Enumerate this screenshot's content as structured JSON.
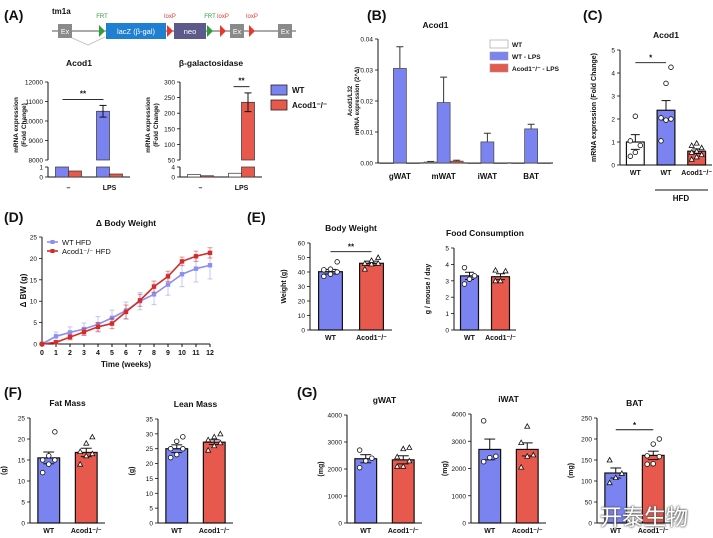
{
  "colors": {
    "wt": "#7b83f0",
    "ko": "#e8594d",
    "white": "#ffffff",
    "frt": "#2e9e3a",
    "loxp": "#e8372c",
    "lacz": "#1f7fd1",
    "neo": "#5b5a8a",
    "exon": "#8a8a8a",
    "wt_line": "#8b8ff2",
    "ko_line": "#d42b2b"
  },
  "panels": {
    "A": {
      "label": "(A)",
      "construct": {
        "name": "tm1a",
        "exon": "Ex",
        "lacz": "lacZ (β-gal)",
        "neo": "neo",
        "frt": "FRT",
        "loxp": "loxP"
      },
      "legend": [
        "WT",
        "Acod1⁻/⁻"
      ]
    },
    "B": {
      "label": "(B)"
    },
    "C": {
      "label": "(C)",
      "group_label": "HFD"
    },
    "D": {
      "label": "(D)"
    },
    "E": {
      "label": "(E)"
    },
    "F": {
      "label": "(F)"
    },
    "G": {
      "label": "(G)"
    }
  },
  "chart_data": [
    {
      "id": "A1",
      "type": "bar",
      "title": "Acod1",
      "ylabel": "mRNA expression (Fold Change)",
      "categories": [
        "–",
        "LPS"
      ],
      "broken_axis": {
        "low": [
          0,
          1
        ],
        "high": [
          8000,
          12000
        ]
      },
      "yticks_low": [
        "0",
        "1"
      ],
      "yticks_high": [
        "8000",
        "9000",
        "10000",
        "11000",
        "12000"
      ],
      "series": [
        {
          "name": "WT",
          "values": [
            1.0,
            10500
          ],
          "errors": [
            0,
            300
          ]
        },
        {
          "name": "Acod1-/-",
          "values": [
            0.6,
            0.3
          ],
          "errors": [
            0.05,
            0.05
          ]
        }
      ],
      "significance": [
        {
          "label": "**",
          "between": [
            "– WT",
            "LPS WT"
          ]
        }
      ]
    },
    {
      "id": "A2",
      "type": "bar",
      "title": "β-galactosidase",
      "ylabel": "mRNA expression (Fold Change)",
      "categories": [
        "–",
        "LPS"
      ],
      "broken_axis": {
        "low": [
          0,
          4
        ],
        "high": [
          50,
          300
        ]
      },
      "yticks_low": [
        "0",
        "4"
      ],
      "yticks_high": [
        "50",
        "100",
        "150",
        "200",
        "250",
        "300"
      ],
      "series": [
        {
          "name": "WT",
          "values": [
            1.0,
            1.5
          ],
          "errors": [
            0.3,
            2.5
          ]
        },
        {
          "name": "Acod1-/-",
          "values": [
            0.5,
            235
          ],
          "errors": [
            0.1,
            30
          ]
        }
      ],
      "significance": [
        {
          "label": "**",
          "between": [
            "LPS WT",
            "LPS Acod1-/-"
          ]
        }
      ]
    },
    {
      "id": "B",
      "type": "bar",
      "title": "Acod1",
      "ylabel": "Acod1/L32 mRNA expression (2^Δ)",
      "ylim": [
        0,
        0.04
      ],
      "yticks": [
        "0.00",
        "0.01",
        "0.02",
        "0.03",
        "0.04"
      ],
      "categories": [
        "gWAT",
        "mWAT",
        "iWAT",
        "BAT"
      ],
      "series": [
        {
          "name": "WT",
          "values": [
            0.0,
            0.0003,
            0.0,
            0.0
          ],
          "errors": [
            0,
            0.0002,
            0,
            0
          ]
        },
        {
          "name": "WT - LPS",
          "values": [
            0.0305,
            0.0195,
            0.0068,
            0.011
          ],
          "errors": [
            0.007,
            0.0082,
            0.0028,
            0.0015
          ]
        },
        {
          "name": "Acod1-/- - LPS",
          "values": [
            0.0,
            0.0006,
            0.0,
            0.0
          ],
          "errors": [
            0,
            0.0003,
            0,
            0
          ]
        }
      ],
      "legend": [
        "WT",
        "WT - LPS",
        "Acod1⁻/⁻ - LPS"
      ]
    },
    {
      "id": "C",
      "type": "bar",
      "title": "Acod1",
      "ylabel": "mRNA expression (Fold Change)",
      "ylim": [
        0,
        5
      ],
      "yticks": [
        "0",
        "1",
        "2",
        "3",
        "4",
        "5"
      ],
      "categories": [
        "WT",
        "WT",
        "Acod1⁻/⁻"
      ],
      "values": [
        1.0,
        2.38,
        0.6
      ],
      "errors": [
        0.32,
        0.42,
        0.1
      ],
      "points": [
        [
          0.38,
          0.55,
          0.85,
          1.05,
          2.12
        ],
        [
          1.05,
          1.95,
          2.0,
          2.05,
          3.55,
          4.25
        ],
        [
          0.25,
          0.35,
          0.45,
          0.55,
          0.6,
          0.75,
          0.85,
          0.95
        ]
      ],
      "significance": [
        {
          "label": "*",
          "between": [
            "WT",
            "WT HFD"
          ]
        }
      ]
    },
    {
      "id": "D",
      "type": "line",
      "title": "Δ Body Weight",
      "xlabel": "Time (weeks)",
      "ylabel": "Δ BW (g)",
      "xlim": [
        0,
        12
      ],
      "ylim": [
        0,
        25
      ],
      "x": [
        0,
        1,
        2,
        3,
        4,
        5,
        6,
        7,
        8,
        9,
        10,
        11,
        12
      ],
      "yticks": [
        "0",
        "5",
        "10",
        "15",
        "20",
        "25"
      ],
      "legend_position": "top-left",
      "series": [
        {
          "name": "WT HFD",
          "values": [
            0,
            1.8,
            2.7,
            3.5,
            4.6,
            6.1,
            7.8,
            10.0,
            11.6,
            13.9,
            16.3,
            17.6,
            18.4
          ],
          "errors": [
            0,
            1.0,
            1.3,
            1.4,
            1.8,
            1.8,
            2.0,
            2.0,
            2.4,
            2.5,
            2.9,
            3.1,
            3.2
          ]
        },
        {
          "name": "Acod1⁻/⁻ HFD",
          "values": [
            0,
            0.4,
            1.6,
            2.8,
            4.0,
            4.8,
            7.5,
            10.2,
            13.4,
            15.8,
            19.3,
            20.5,
            21.3
          ],
          "errors": [
            0,
            0.4,
            0.6,
            0.8,
            1.0,
            1.2,
            1.6,
            1.4,
            1.3,
            1.2,
            1.0,
            1.2,
            1.2
          ]
        }
      ]
    },
    {
      "id": "E1",
      "type": "bar",
      "title": "Body Weight",
      "ylabel": "Weight (g)",
      "ylim": [
        0,
        60
      ],
      "yticks": [
        "0",
        "10",
        "20",
        "30",
        "40",
        "50",
        "60"
      ],
      "categories": [
        "WT",
        "Acod1⁻/⁻"
      ],
      "values": [
        40.2,
        46.0
      ],
      "errors": [
        1.6,
        1.5
      ],
      "points": [
        [
          37,
          38.5,
          40,
          41.5,
          42,
          47
        ],
        [
          42,
          45.5,
          46,
          46,
          48,
          50
        ]
      ],
      "significance": [
        {
          "label": "**",
          "between": [
            "WT",
            "Acod1-/-"
          ]
        }
      ]
    },
    {
      "id": "E2",
      "type": "bar",
      "title": "Food Consumption",
      "ylabel": "g / mouse / day",
      "ylim": [
        0,
        5
      ],
      "yticks": [
        "0",
        "1",
        "2",
        "3",
        "4",
        "5"
      ],
      "categories": [
        "WT",
        "Acod1⁻/⁻"
      ],
      "values": [
        3.3,
        3.25
      ],
      "errors": [
        0.22,
        0.18
      ],
      "points": [
        [
          2.8,
          3.1,
          3.3,
          3.8
        ],
        [
          3.0,
          3.0,
          3.6,
          3.65
        ]
      ]
    },
    {
      "id": "F1",
      "type": "bar",
      "title": "Fat Mass",
      "ylabel": "(g)",
      "ylim": [
        0,
        25
      ],
      "yticks": [
        "0",
        "5",
        "10",
        "15",
        "20",
        "25"
      ],
      "categories": [
        "WT",
        "Acod1⁻/⁻"
      ],
      "values": [
        15.5,
        16.8
      ],
      "errors": [
        1.4,
        1.0
      ],
      "points": [
        [
          12,
          14,
          15,
          15,
          16,
          21.7
        ],
        [
          14,
          16,
          16.5,
          17,
          19,
          20.5
        ]
      ]
    },
    {
      "id": "F2",
      "type": "bar",
      "title": "Lean Mass",
      "ylabel": "(g)",
      "ylim": [
        0,
        35
      ],
      "yticks": [
        "0",
        "5",
        "10",
        "15",
        "20",
        "25",
        "30",
        "35"
      ],
      "categories": [
        "WT",
        "Acod1⁻/⁻"
      ],
      "values": [
        25.0,
        27.2
      ],
      "errors": [
        1.3,
        0.8
      ],
      "points": [
        [
          22,
          23,
          25,
          25,
          27.5,
          29
        ],
        [
          24.5,
          26,
          27,
          28,
          29,
          30
        ]
      ]
    },
    {
      "id": "G1",
      "type": "bar",
      "title": "gWAT",
      "ylabel": "(mg)",
      "ylim": [
        0,
        4000
      ],
      "yticks": [
        "0",
        "1000",
        "2000",
        "3000",
        "4000"
      ],
      "categories": [
        "WT",
        "Acod1⁻/⁻"
      ],
      "values": [
        2380,
        2340
      ],
      "errors": [
        150,
        150
      ],
      "points": [
        [
          2050,
          2300,
          2400,
          2700
        ],
        [
          2100,
          2100,
          2300,
          2450,
          2750,
          2800
        ]
      ]
    },
    {
      "id": "G2",
      "type": "bar",
      "title": "iWAT",
      "ylabel": "(mg)",
      "ylim": [
        0,
        4000
      ],
      "yticks": [
        "0",
        "1000",
        "2000",
        "3000",
        "4000"
      ],
      "categories": [
        "WT",
        "Acod1⁻/⁻"
      ],
      "values": [
        2700,
        2700
      ],
      "errors": [
        380,
        240
      ],
      "points": [
        [
          2250,
          2400,
          2450,
          3750
        ],
        [
          2050,
          2450,
          2500,
          2950,
          3550
        ]
      ]
    },
    {
      "id": "G3",
      "type": "bar",
      "title": "BAT",
      "ylabel": "(mg)",
      "ylim": [
        0,
        250
      ],
      "yticks": [
        "0",
        "50",
        "100",
        "150",
        "200",
        "250"
      ],
      "categories": [
        "WT",
        "Acod1⁻/⁻"
      ],
      "values": [
        119,
        161
      ],
      "errors": [
        12,
        10
      ],
      "points": [
        [
          96,
          108,
          118,
          150
        ],
        [
          140,
          141,
          158,
          160,
          188,
          200
        ]
      ],
      "significance": [
        {
          "label": "*",
          "between": [
            "WT",
            "Acod1-/-"
          ]
        }
      ]
    }
  ],
  "watermark": "开泰生物"
}
